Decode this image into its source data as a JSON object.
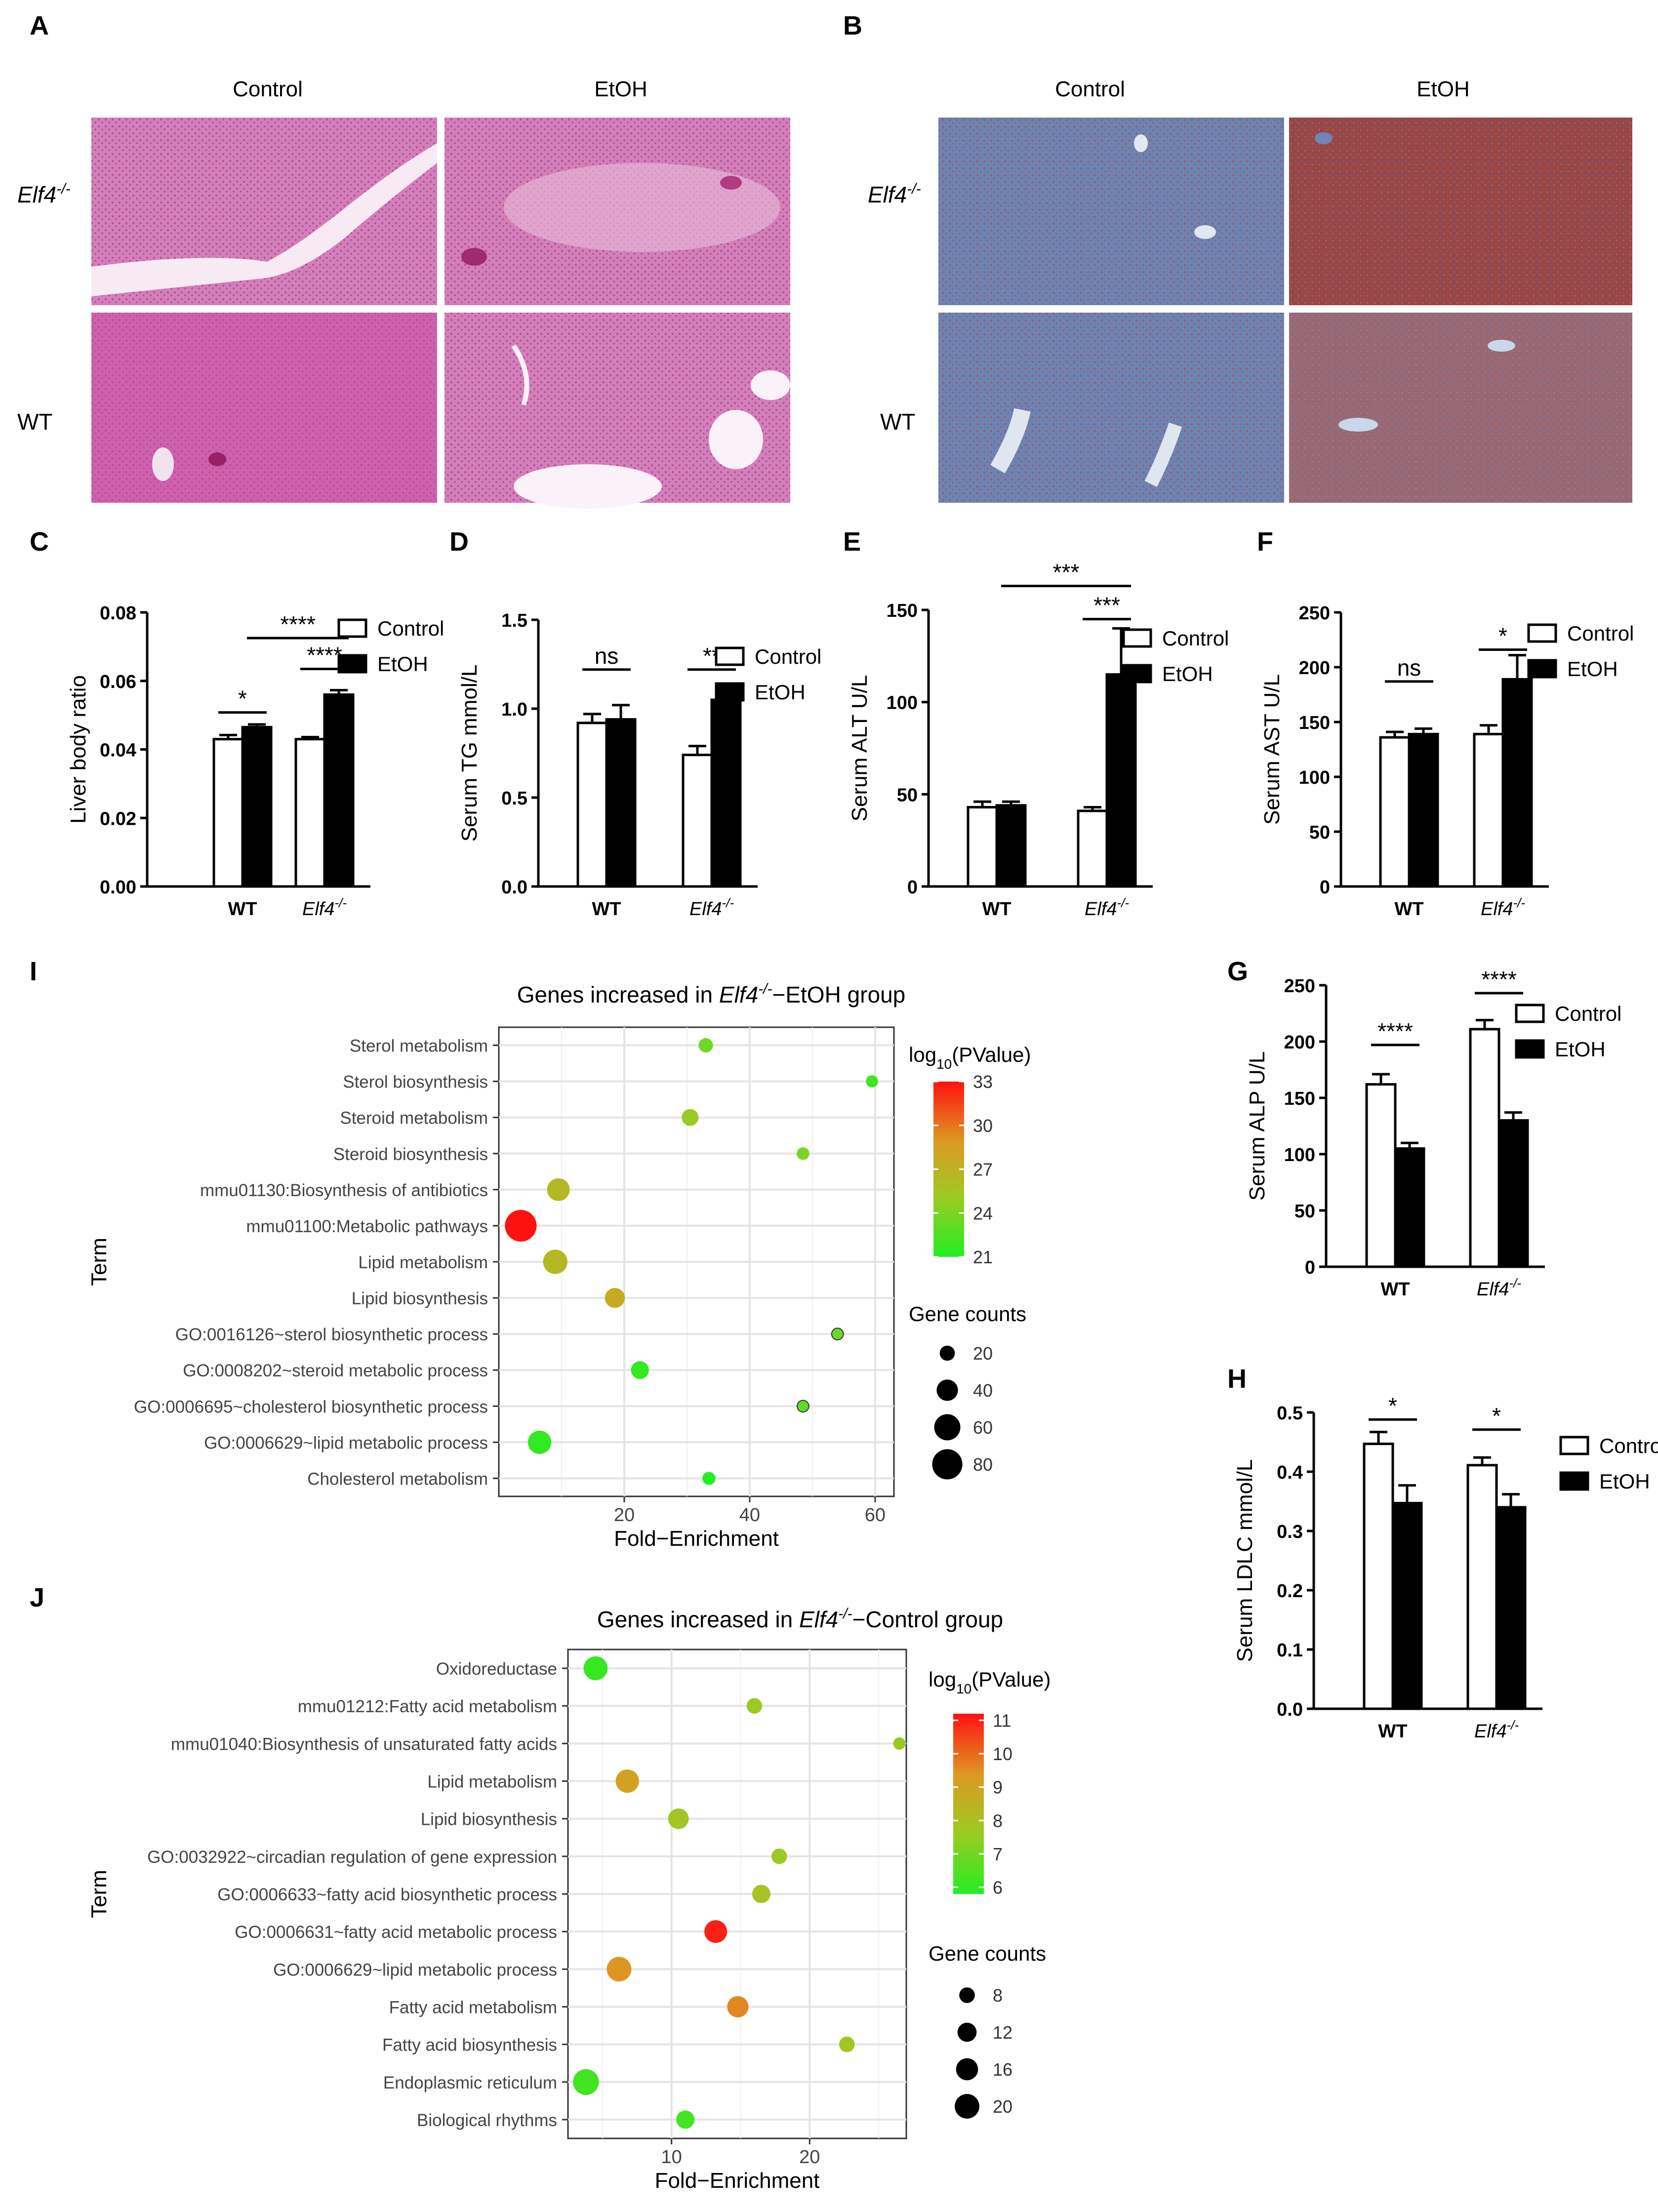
{
  "panels": {
    "A": {
      "label": "A",
      "columns": [
        "Control",
        "EtOH"
      ],
      "rows": [
        {
          "label": "Elf4",
          "sup": "-/-"
        },
        {
          "label": "WT",
          "sup": ""
        }
      ],
      "colors": {
        "bg": "#d98fc4",
        "tissue": "#c95aa5",
        "vessel": "#f6e6f2"
      }
    },
    "B": {
      "label": "B",
      "columns": [
        "Control",
        "EtOH"
      ],
      "rows": [
        {
          "label": "Elf4",
          "sup": "-/-"
        },
        {
          "label": "WT",
          "sup": ""
        }
      ],
      "colors": {
        "blue": "#7588b6",
        "red": "#a54f4d",
        "mixed": "#8c5461",
        "vessel": "#d9e2ee"
      }
    },
    "I": {
      "label": "I"
    },
    "J": {
      "label": "J"
    }
  },
  "legend": {
    "control": "Control",
    "etoh": "EtOH"
  },
  "chart_data": [
    {
      "id": "C",
      "type": "bar",
      "ylabel": "Liver body ratio",
      "categories": [
        {
          "label": "WT",
          "italic": false,
          "sup": ""
        },
        {
          "label": "Elf4",
          "italic": true,
          "sup": "-/-"
        }
      ],
      "ylim": [
        0,
        0.08
      ],
      "yticks": [
        "0.00",
        "0.02",
        "0.04",
        "0.06",
        "0.08"
      ],
      "series": [
        {
          "name": "Control",
          "values": [
            0.043,
            0.043
          ],
          "errors": [
            0.0012,
            0.0006
          ]
        },
        {
          "name": "EtOH",
          "values": [
            0.0465,
            0.056
          ],
          "errors": [
            0.0008,
            0.0013
          ]
        }
      ],
      "annotations": [
        {
          "text": "*",
          "from": [
            0,
            0
          ],
          "to": [
            0,
            1
          ],
          "y": 0.0508
        },
        {
          "text": "****",
          "from": [
            0,
            1
          ],
          "to": [
            1,
            1
          ],
          "y": 0.0725
        },
        {
          "text": "****",
          "from": [
            1,
            0
          ],
          "to": [
            1,
            1
          ],
          "y": 0.0635
        }
      ]
    },
    {
      "id": "D",
      "type": "bar",
      "ylabel": "Serum TG mmol/L",
      "categories": [
        {
          "label": "WT",
          "italic": false,
          "sup": ""
        },
        {
          "label": "Elf4",
          "italic": true,
          "sup": "-/-"
        }
      ],
      "ylim": [
        0,
        1.5
      ],
      "yticks": [
        "0.0",
        "0.5",
        "1.0",
        "1.5"
      ],
      "series": [
        {
          "name": "Control",
          "values": [
            0.92,
            0.74
          ],
          "errors": [
            0.05,
            0.05
          ]
        },
        {
          "name": "EtOH",
          "values": [
            0.94,
            1.05
          ],
          "errors": [
            0.08,
            0.07
          ]
        }
      ],
      "annotations": [
        {
          "text": "ns",
          "from": [
            0,
            0
          ],
          "to": [
            0,
            1
          ],
          "y": 1.22
        },
        {
          "text": "**",
          "from": [
            1,
            0
          ],
          "to": [
            1,
            1
          ],
          "y": 1.22
        }
      ]
    },
    {
      "id": "E",
      "type": "bar",
      "ylabel": "Serum ALT U/L",
      "categories": [
        {
          "label": "WT",
          "italic": false,
          "sup": ""
        },
        {
          "label": "Elf4",
          "italic": true,
          "sup": "-/-"
        }
      ],
      "ylim": [
        0,
        150
      ],
      "yticks": [
        "0",
        "50",
        "100",
        "150"
      ],
      "series": [
        {
          "name": "Control",
          "values": [
            43,
            41
          ],
          "errors": [
            3,
            2
          ]
        },
        {
          "name": "EtOH",
          "values": [
            44,
            115
          ],
          "errors": [
            2,
            25
          ]
        }
      ],
      "annotations": [
        {
          "text": "***",
          "from": [
            0,
            1
          ],
          "to": [
            1,
            1
          ],
          "y": 163
        },
        {
          "text": "***",
          "from": [
            1,
            0
          ],
          "to": [
            1,
            1
          ],
          "y": 145
        }
      ]
    },
    {
      "id": "F",
      "type": "bar",
      "ylabel": "Serum AST U/L",
      "categories": [
        {
          "label": "WT",
          "italic": false,
          "sup": ""
        },
        {
          "label": "Elf4",
          "italic": true,
          "sup": "-/-"
        }
      ],
      "ylim": [
        0,
        250
      ],
      "yticks": [
        "0",
        "50",
        "100",
        "150",
        "200",
        "250"
      ],
      "series": [
        {
          "name": "Control",
          "values": [
            136,
            139
          ],
          "errors": [
            5,
            8
          ]
        },
        {
          "name": "EtOH",
          "values": [
            139,
            189
          ],
          "errors": [
            5,
            22
          ]
        }
      ],
      "annotations": [
        {
          "text": "ns",
          "from": [
            0,
            0
          ],
          "to": [
            0,
            1
          ],
          "y": 187
        },
        {
          "text": "*",
          "from": [
            1,
            0
          ],
          "to": [
            1,
            1
          ],
          "y": 216
        }
      ]
    },
    {
      "id": "G",
      "type": "bar",
      "ylabel": "Serum ALP U/L",
      "categories": [
        {
          "label": "WT",
          "italic": false,
          "sup": ""
        },
        {
          "label": "Elf4",
          "italic": true,
          "sup": "-/-"
        }
      ],
      "ylim": [
        0,
        250
      ],
      "yticks": [
        "0",
        "50",
        "100",
        "150",
        "200",
        "250"
      ],
      "series": [
        {
          "name": "Control",
          "values": [
            162,
            211
          ],
          "errors": [
            9,
            8
          ]
        },
        {
          "name": "EtOH",
          "values": [
            105,
            130
          ],
          "errors": [
            5,
            7
          ]
        }
      ],
      "annotations": [
        {
          "text": "****",
          "from": [
            0,
            0
          ],
          "to": [
            0,
            1
          ],
          "y": 197
        },
        {
          "text": "****",
          "from": [
            1,
            0
          ],
          "to": [
            1,
            1
          ],
          "y": 243
        }
      ]
    },
    {
      "id": "H",
      "type": "bar",
      "ylabel": "Serum LDLC mmol/L",
      "categories": [
        {
          "label": "WT",
          "italic": false,
          "sup": ""
        },
        {
          "label": "Elf4",
          "italic": true,
          "sup": "-/-"
        }
      ],
      "ylim": [
        0,
        0.5
      ],
      "yticks": [
        "0.0",
        "0.1",
        "0.2",
        "0.3",
        "0.4",
        "0.5"
      ],
      "series": [
        {
          "name": "Control",
          "values": [
            0.447,
            0.411
          ],
          "errors": [
            0.02,
            0.013
          ]
        },
        {
          "name": "EtOH",
          "values": [
            0.347,
            0.34
          ],
          "errors": [
            0.03,
            0.022
          ]
        }
      ],
      "annotations": [
        {
          "text": "*",
          "from": [
            0,
            0
          ],
          "to": [
            0,
            1
          ],
          "y": 0.488
        },
        {
          "text": "*",
          "from": [
            1,
            0
          ],
          "to": [
            1,
            1
          ],
          "y": 0.471
        }
      ]
    },
    {
      "id": "I",
      "type": "scatter",
      "title": {
        "pre": "Genes increased in ",
        "italic": "Elf4",
        "sup": "-/-",
        "post": "−EtOH group"
      },
      "xlabel": "Fold−Enrichment",
      "ylabel": "Term",
      "xlim": [
        0,
        63
      ],
      "xticks": [
        20,
        40,
        60
      ],
      "colorbar": {
        "label": "log",
        "sub": "10",
        "suffix": "(PValue)",
        "min": 21,
        "max": 33,
        "ticks": [
          33,
          30,
          27,
          24,
          21
        ]
      },
      "size_legend": {
        "title": "Gene counts",
        "values": [
          20,
          40,
          60,
          80
        ]
      },
      "points": [
        {
          "term": "Sterol metabolism",
          "x": 33,
          "p": 23.5,
          "count": 18
        },
        {
          "term": "Sterol biosynthesis",
          "x": 59.5,
          "p": 22,
          "count": 13
        },
        {
          "term": "Steroid metabolism",
          "x": 30.5,
          "p": 25,
          "count": 25
        },
        {
          "term": "Steroid biosynthesis",
          "x": 48.5,
          "p": 24,
          "count": 14
        },
        {
          "term": "mmu01130:Biosynthesis of antibiotics",
          "x": 9.5,
          "p": 26.5,
          "count": 45
        },
        {
          "term": "mmu01100:Metabolic pathways",
          "x": 3.5,
          "p": 33,
          "count": 88
        },
        {
          "term": "Lipid metabolism",
          "x": 9,
          "p": 26.5,
          "count": 52
        },
        {
          "term": "Lipid biosynthesis",
          "x": 18.5,
          "p": 27.5,
          "count": 35
        },
        {
          "term": "GO:0016126~sterol biosynthetic process",
          "x": 54,
          "p": 23.5,
          "count": 12
        },
        {
          "term": "GO:0008202~steroid metabolic process",
          "x": 22.5,
          "p": 21.5,
          "count": 28
        },
        {
          "term": "GO:0006695~cholesterol biosynthetic process",
          "x": 48.5,
          "p": 23,
          "count": 12
        },
        {
          "term": "GO:0006629~lipid metabolic process",
          "x": 6.5,
          "p": 21.5,
          "count": 48
        },
        {
          "term": "Cholesterol metabolism",
          "x": 33.5,
          "p": 21,
          "count": 15
        }
      ]
    },
    {
      "id": "J",
      "type": "scatter",
      "title": {
        "pre": "Genes increased in ",
        "italic": "Elf4",
        "sup": "-/-",
        "post": "−Control group"
      },
      "xlabel": "Fold−Enrichment",
      "ylabel": "Term",
      "xlim": [
        2.5,
        27
      ],
      "xticks": [
        10,
        20
      ],
      "colorbar": {
        "label": "log",
        "sub": "10",
        "suffix": "(PValue)",
        "min": 5.8,
        "max": 11.2,
        "ticks": [
          11,
          10,
          9,
          8,
          7,
          6
        ]
      },
      "size_legend": {
        "title": "Gene counts",
        "values": [
          8,
          12,
          16,
          20
        ]
      },
      "points": [
        {
          "term": "Oxidoreductase",
          "x": 4.5,
          "p": 6.1,
          "count": 19
        },
        {
          "term": "mmu01212:Fatty acid metabolism",
          "x": 16,
          "p": 7.6,
          "count": 8
        },
        {
          "term": "mmu01040:Biosynthesis of unsaturated fatty acids",
          "x": 26.5,
          "p": 7.6,
          "count": 5
        },
        {
          "term": "Lipid metabolism",
          "x": 6.8,
          "p": 9.1,
          "count": 18
        },
        {
          "term": "Lipid biosynthesis",
          "x": 10.5,
          "p": 7.8,
          "count": 14
        },
        {
          "term": "GO:0032922~circadian regulation of gene expression",
          "x": 17.8,
          "p": 7.7,
          "count": 8
        },
        {
          "term": "GO:0006633~fatty acid biosynthetic process",
          "x": 16.5,
          "p": 7.9,
          "count": 11
        },
        {
          "term": "GO:0006631~fatty acid metabolic process",
          "x": 13.2,
          "p": 11,
          "count": 17
        },
        {
          "term": "GO:0006629~lipid metabolic process",
          "x": 6.2,
          "p": 9.4,
          "count": 20
        },
        {
          "term": "Fatty acid metabolism",
          "x": 14.8,
          "p": 9.6,
          "count": 15
        },
        {
          "term": "Fatty acid biosynthesis",
          "x": 22.7,
          "p": 7.8,
          "count": 8
        },
        {
          "term": "Endoplasmic reticulum",
          "x": 3.8,
          "p": 6.3,
          "count": 22
        },
        {
          "term": "Biological rhythms",
          "x": 11,
          "p": 6.3,
          "count": 11
        }
      ]
    }
  ]
}
